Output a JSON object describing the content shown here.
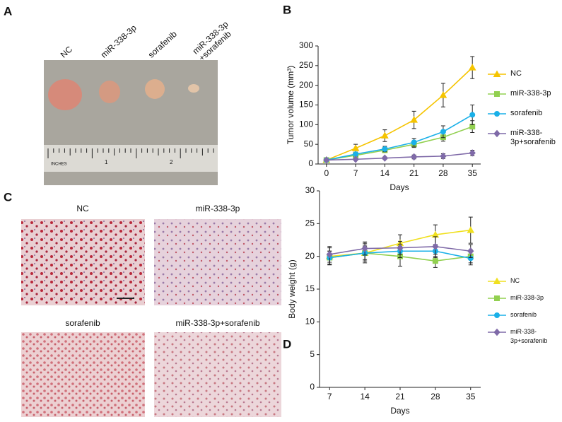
{
  "panels": [
    "A",
    "B",
    "C",
    "D"
  ],
  "photo_labels": [
    "NC",
    "miR-338-3p",
    "sorafenib",
    [
      "miR-338-3p",
      "+sorafenib"
    ]
  ],
  "ruler_labels": [
    "INCHES",
    "1",
    "2"
  ],
  "histology_labels": [
    "NC",
    "miR-338-3p",
    "sorafenib",
    "miR-338-3p+sorafenib"
  ],
  "chart_data": [
    {
      "type": "line",
      "x_label": "Days",
      "y_label": "Tumor volume (mm³)",
      "x": [
        0,
        7,
        14,
        21,
        28,
        35
      ],
      "xlim": [
        -2,
        37
      ],
      "xticks": [
        0,
        7,
        14,
        21,
        28,
        35
      ],
      "ylim": [
        0,
        300
      ],
      "yticks": [
        0,
        50,
        100,
        150,
        200,
        250,
        300
      ],
      "series": [
        {
          "name": "NC",
          "color": "#f5c400",
          "marker": "triangle",
          "values": [
            10,
            40,
            72,
            112,
            175,
            245
          ],
          "errors": [
            2,
            10,
            15,
            22,
            30,
            28
          ]
        },
        {
          "name": "miR-338-3p",
          "color": "#92d050",
          "marker": "square",
          "values": [
            10,
            22,
            35,
            50,
            68,
            95
          ],
          "errors": [
            2,
            5,
            6,
            8,
            10,
            15
          ]
        },
        {
          "name": "sorafenib",
          "color": "#1ab0e8",
          "marker": "circle",
          "values": [
            10,
            25,
            38,
            55,
            82,
            125
          ],
          "errors": [
            2,
            5,
            7,
            10,
            15,
            25
          ]
        },
        {
          "name": "miR-338-3p+sorafenib",
          "color": "#7f6aa8",
          "marker": "diamond",
          "values": [
            10,
            12,
            15,
            18,
            20,
            28
          ],
          "errors": [
            2,
            3,
            3,
            5,
            6,
            7
          ]
        }
      ]
    },
    {
      "type": "line",
      "x_label": "Days",
      "y_label": "Body weight (g)",
      "x": [
        7,
        14,
        21,
        28,
        35
      ],
      "xlim": [
        5,
        37
      ],
      "xticks": [
        7,
        14,
        21,
        28,
        35
      ],
      "ylim": [
        0,
        30
      ],
      "yticks": [
        0,
        5,
        10,
        15,
        20,
        25,
        30
      ],
      "series": [
        {
          "name": "NC",
          "color": "#f0e020",
          "marker": "triangle",
          "values": [
            20,
            20.5,
            22,
            23.3,
            24
          ],
          "errors": [
            1.3,
            1.2,
            1.3,
            1.5,
            2
          ]
        },
        {
          "name": "miR-338-3p",
          "color": "#92d050",
          "marker": "square",
          "values": [
            19.8,
            20.5,
            20,
            19.3,
            20
          ],
          "errors": [
            1,
            1.5,
            1.5,
            1,
            1
          ]
        },
        {
          "name": "sorafenib",
          "color": "#1ab0e8",
          "marker": "circle",
          "values": [
            19.8,
            20.5,
            20.8,
            20.8,
            19.7
          ],
          "errors": [
            1,
            1,
            1,
            1,
            1
          ]
        },
        {
          "name": "miR-338-3p+sorafenib",
          "color": "#7f6aa8",
          "marker": "diamond",
          "values": [
            20.3,
            21.2,
            21.3,
            21.5,
            20.8
          ],
          "errors": [
            1.2,
            1,
            1,
            1.5,
            1
          ]
        }
      ]
    }
  ]
}
